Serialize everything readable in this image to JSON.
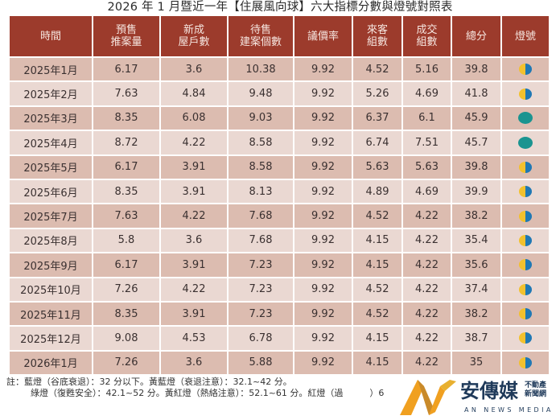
{
  "title": "2026 年 1 月暨近一年【住展風向球】六大指標分數與燈號對照表",
  "headers": [
    "時間",
    "預售\n推案量",
    "新成\n屋戶數",
    "待售\n建案個數",
    "議價率",
    "來客\n組數",
    "成交\n組數",
    "總分",
    "燈號"
  ],
  "header_lines": [
    [
      "時間"
    ],
    [
      "預售",
      "推案量"
    ],
    [
      "新成",
      "屋戶數"
    ],
    [
      "待售",
      "建案個數"
    ],
    [
      "議價率"
    ],
    [
      "來客",
      "組數"
    ],
    [
      "成交",
      "組數"
    ],
    [
      "總分"
    ],
    [
      "燈號"
    ]
  ],
  "colors": {
    "header_bg": "#9c3b2c",
    "row_dark": "#dcbcb0",
    "row_light": "#ead8d2",
    "lamp_yellow": "#f2c12e",
    "lamp_blue": "#1f78b4",
    "lamp_green": "#1a9490"
  },
  "rows": [
    {
      "time": "2025年1月",
      "presale": "6.17",
      "new_units": "3.6",
      "unsold": "10.38",
      "bargain": "9.92",
      "visitors": "4.52",
      "deals": "5.16",
      "total": "39.8",
      "lamp": "yellow-blue"
    },
    {
      "time": "2025年2月",
      "presale": "7.63",
      "new_units": "4.84",
      "unsold": "9.48",
      "bargain": "9.92",
      "visitors": "5.26",
      "deals": "4.69",
      "total": "41.8",
      "lamp": "yellow-blue"
    },
    {
      "time": "2025年3月",
      "presale": "8.35",
      "new_units": "6.08",
      "unsold": "9.03",
      "bargain": "9.92",
      "visitors": "6.37",
      "deals": "6.1",
      "total": "45.9",
      "lamp": "green"
    },
    {
      "time": "2025年4月",
      "presale": "8.72",
      "new_units": "4.22",
      "unsold": "8.58",
      "bargain": "9.92",
      "visitors": "6.74",
      "deals": "7.51",
      "total": "45.7",
      "lamp": "green"
    },
    {
      "time": "2025年5月",
      "presale": "6.17",
      "new_units": "3.91",
      "unsold": "8.58",
      "bargain": "9.92",
      "visitors": "5.63",
      "deals": "5.63",
      "total": "39.8",
      "lamp": "yellow-blue"
    },
    {
      "time": "2025年6月",
      "presale": "8.35",
      "new_units": "3.91",
      "unsold": "8.13",
      "bargain": "9.92",
      "visitors": "4.89",
      "deals": "4.69",
      "total": "39.9",
      "lamp": "yellow-blue"
    },
    {
      "time": "2025年7月",
      "presale": "7.63",
      "new_units": "4.22",
      "unsold": "7.68",
      "bargain": "9.92",
      "visitors": "4.52",
      "deals": "4.22",
      "total": "38.2",
      "lamp": "yellow-blue"
    },
    {
      "time": "2025年8月",
      "presale": "5.8",
      "new_units": "3.6",
      "unsold": "7.68",
      "bargain": "9.92",
      "visitors": "4.15",
      "deals": "4.22",
      "total": "35.4",
      "lamp": "yellow-blue"
    },
    {
      "time": "2025年9月",
      "presale": "6.17",
      "new_units": "3.91",
      "unsold": "7.23",
      "bargain": "9.92",
      "visitors": "4.15",
      "deals": "4.22",
      "total": "35.6",
      "lamp": "yellow-blue"
    },
    {
      "time": "2025年10月",
      "presale": "7.26",
      "new_units": "4.22",
      "unsold": "7.23",
      "bargain": "9.92",
      "visitors": "4.52",
      "deals": "4.22",
      "total": "37.4",
      "lamp": "yellow-blue"
    },
    {
      "time": "2025年11月",
      "presale": "8.35",
      "new_units": "3.91",
      "unsold": "7.23",
      "bargain": "9.92",
      "visitors": "4.52",
      "deals": "4.22",
      "total": "38.2",
      "lamp": "yellow-blue"
    },
    {
      "time": "2025年12月",
      "presale": "9.08",
      "new_units": "4.53",
      "unsold": "6.78",
      "bargain": "9.92",
      "visitors": "4.15",
      "deals": "4.22",
      "total": "38.7",
      "lamp": "yellow-blue"
    },
    {
      "time": "2026年1月",
      "presale": "7.26",
      "new_units": "3.6",
      "unsold": "5.88",
      "bargain": "9.92",
      "visitors": "4.15",
      "deals": "4.22",
      "total": "35",
      "lamp": "yellow-blue"
    }
  ],
  "note": {
    "line1": "註：藍燈（谷底衰退）：32 分以下。黃藍燈（衰退注意）：32.1~42 分。",
    "line2": "綠燈（復甦安全）：42.1~52 分。黃紅燈（熱絡注意）：52.1~61 分。紅燈（過　　　）6"
  },
  "logo": {
    "cn": "安傳媒",
    "sub1": "不動產",
    "sub2": "新聞網",
    "en": "AN NEWS MEDIA"
  }
}
